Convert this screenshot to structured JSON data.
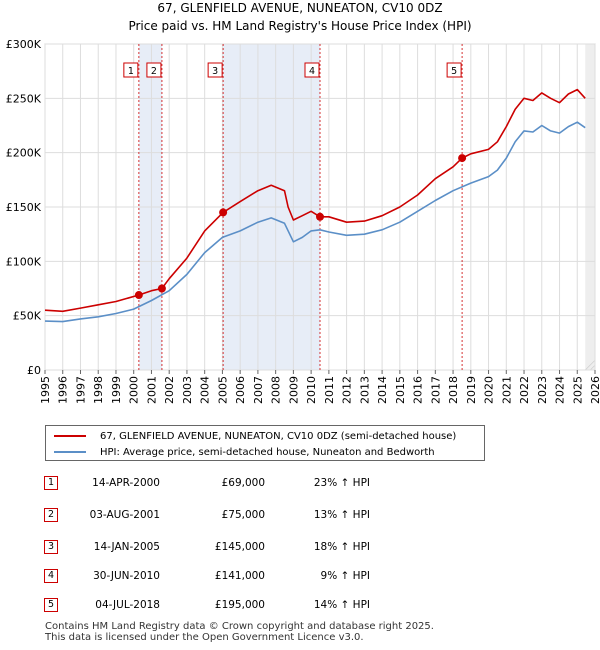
{
  "chart_data": {
    "type": "line",
    "title": "67, GLENFIELD AVENUE, NUNEATON, CV10 0DZ",
    "subtitle": "Price paid vs. HM Land Registry's House Price Index (HPI)",
    "xlim": [
      1995,
      2026
    ],
    "ylim": [
      0,
      300000
    ],
    "x_ticks": [
      1995,
      1996,
      1997,
      1998,
      1999,
      2000,
      2001,
      2002,
      2003,
      2004,
      2005,
      2006,
      2007,
      2008,
      2009,
      2010,
      2011,
      2012,
      2013,
      2014,
      2015,
      2016,
      2017,
      2018,
      2019,
      2020,
      2021,
      2022,
      2023,
      2024,
      2025,
      2026
    ],
    "x_tick_labels": [
      "1995",
      "1996",
      "1997",
      "1998",
      "1999",
      "2000",
      "2001",
      "2002",
      "2003",
      "2004",
      "2005",
      "2006",
      "2007",
      "2008",
      "2009",
      "2010",
      "2011",
      "2012",
      "2013",
      "2014",
      "2015",
      "2016",
      "2017",
      "2018",
      "2019",
      "2020",
      "2021",
      "2022",
      "2023",
      "2024",
      "2025",
      "2026"
    ],
    "y_ticks": [
      0,
      50000,
      100000,
      150000,
      200000,
      250000,
      300000
    ],
    "y_tick_labels": [
      "£0",
      "£50K",
      "£100K",
      "£150K",
      "£200K",
      "£250K",
      "£300K"
    ],
    "grid": true,
    "series": [
      {
        "name": "67, GLENFIELD AVENUE, NUNEATON, CV10 0DZ (semi-detached house)",
        "color": "#cc0000",
        "points": [
          [
            1995.0,
            55000
          ],
          [
            1996.0,
            54000
          ],
          [
            1997.0,
            57000
          ],
          [
            1998.0,
            60000
          ],
          [
            1999.0,
            63000
          ],
          [
            2000.29,
            69000
          ],
          [
            2001.0,
            73000
          ],
          [
            2001.59,
            75000
          ],
          [
            2002.0,
            84000
          ],
          [
            2003.0,
            103000
          ],
          [
            2004.0,
            128000
          ],
          [
            2005.04,
            145000
          ],
          [
            2006.0,
            155000
          ],
          [
            2007.0,
            165000
          ],
          [
            2007.75,
            170000
          ],
          [
            2008.5,
            165000
          ],
          [
            2008.7,
            150000
          ],
          [
            2009.0,
            138000
          ],
          [
            2009.5,
            142000
          ],
          [
            2010.0,
            146000
          ],
          [
            2010.5,
            141000
          ],
          [
            2011.0,
            141000
          ],
          [
            2012.0,
            136000
          ],
          [
            2013.0,
            137000
          ],
          [
            2014.0,
            142000
          ],
          [
            2015.0,
            150000
          ],
          [
            2016.0,
            161000
          ],
          [
            2017.0,
            176000
          ],
          [
            2018.0,
            187000
          ],
          [
            2018.51,
            195000
          ],
          [
            2019.0,
            199000
          ],
          [
            2020.0,
            203000
          ],
          [
            2020.5,
            210000
          ],
          [
            2021.0,
            224000
          ],
          [
            2021.5,
            240000
          ],
          [
            2022.0,
            250000
          ],
          [
            2022.5,
            248000
          ],
          [
            2023.0,
            255000
          ],
          [
            2023.5,
            250000
          ],
          [
            2024.0,
            246000
          ],
          [
            2024.5,
            254000
          ],
          [
            2025.0,
            258000
          ],
          [
            2025.45,
            250000
          ]
        ]
      },
      {
        "name": "HPI: Average price, semi-detached house, Nuneaton and Bedworth",
        "color": "#5b8fc7",
        "points": [
          [
            1995.0,
            45000
          ],
          [
            1996.0,
            44500
          ],
          [
            1997.0,
            47000
          ],
          [
            1998.0,
            49000
          ],
          [
            1999.0,
            52000
          ],
          [
            2000.0,
            56000
          ],
          [
            2001.0,
            64000
          ],
          [
            2002.0,
            73000
          ],
          [
            2003.0,
            88000
          ],
          [
            2004.0,
            108000
          ],
          [
            2005.0,
            122000
          ],
          [
            2006.0,
            128000
          ],
          [
            2007.0,
            136000
          ],
          [
            2007.75,
            140000
          ],
          [
            2008.5,
            135000
          ],
          [
            2009.0,
            118000
          ],
          [
            2009.5,
            122000
          ],
          [
            2010.0,
            128000
          ],
          [
            2010.5,
            129000
          ],
          [
            2011.0,
            127000
          ],
          [
            2012.0,
            124000
          ],
          [
            2013.0,
            125000
          ],
          [
            2014.0,
            129000
          ],
          [
            2015.0,
            136000
          ],
          [
            2016.0,
            146000
          ],
          [
            2017.0,
            156000
          ],
          [
            2018.0,
            165000
          ],
          [
            2019.0,
            172000
          ],
          [
            2020.0,
            178000
          ],
          [
            2020.5,
            184000
          ],
          [
            2021.0,
            195000
          ],
          [
            2021.5,
            210000
          ],
          [
            2022.0,
            220000
          ],
          [
            2022.5,
            219000
          ],
          [
            2023.0,
            225000
          ],
          [
            2023.5,
            220000
          ],
          [
            2024.0,
            218000
          ],
          [
            2024.5,
            224000
          ],
          [
            2025.0,
            228000
          ],
          [
            2025.45,
            223000
          ]
        ]
      }
    ],
    "sales": [
      {
        "id": "1",
        "x": 2000.29,
        "price": 69000
      },
      {
        "id": "2",
        "x": 2001.59,
        "price": 75000
      },
      {
        "id": "3",
        "x": 2005.04,
        "price": 145000
      },
      {
        "id": "4",
        "x": 2010.5,
        "price": 141000
      },
      {
        "id": "5",
        "x": 2018.51,
        "price": 195000
      }
    ],
    "shaded_ranges": [
      [
        2000.29,
        2001.59
      ],
      [
        2005.04,
        2010.5
      ],
      [
        2018.51,
        2018.51
      ]
    ],
    "future_from": 2025.45,
    "legend_position": "bottom"
  },
  "legend": {
    "property_label": "67, GLENFIELD AVENUE, NUNEATON, CV10 0DZ (semi-detached house)",
    "hpi_label": "HPI: Average price, semi-detached house, Nuneaton and Bedworth",
    "property_color": "#cc0000",
    "hpi_color": "#5b8fc7"
  },
  "transactions": [
    {
      "num": "1",
      "date": "14-APR-2000",
      "price": "£69,000",
      "hpi": "23% ↑ HPI"
    },
    {
      "num": "2",
      "date": "03-AUG-2001",
      "price": "£75,000",
      "hpi": "13% ↑ HPI"
    },
    {
      "num": "3",
      "date": "14-JAN-2005",
      "price": "£145,000",
      "hpi": "18% ↑ HPI"
    },
    {
      "num": "4",
      "date": "30-JUN-2010",
      "price": "£141,000",
      "hpi": "9% ↑ HPI"
    },
    {
      "num": "5",
      "date": "04-JUL-2018",
      "price": "£195,000",
      "hpi": "14% ↑ HPI"
    }
  ],
  "footer": {
    "line1": "Contains HM Land Registry data © Crown copyright and database right 2025.",
    "line2": "This data is licensed under the Open Government Licence v3.0."
  }
}
